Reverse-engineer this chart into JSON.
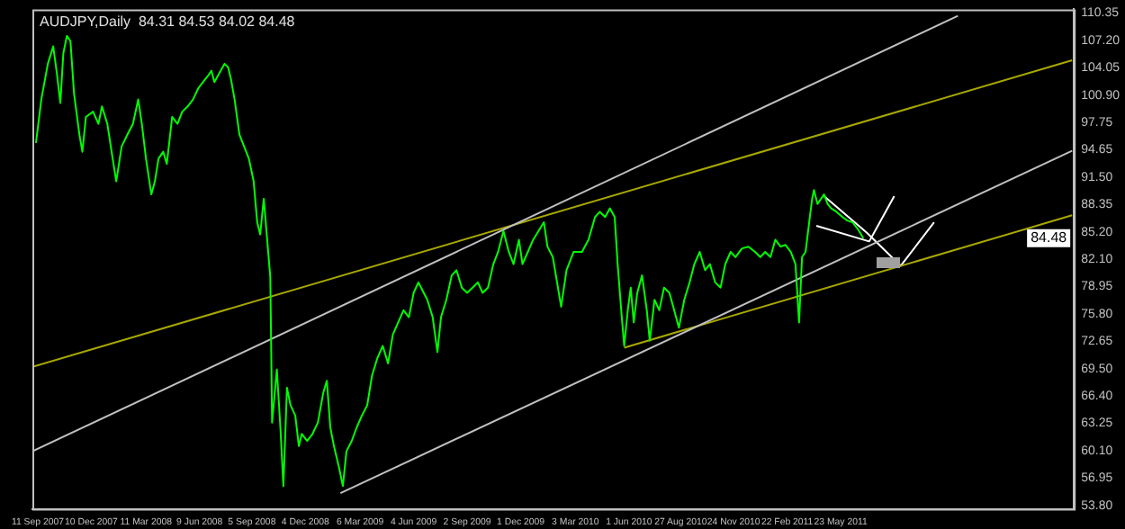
{
  "chart_data": {
    "type": "line",
    "title": "AUDJPY,Daily  84.31 84.53 84.02 84.48",
    "xlim": [
      "2007-09-02",
      "2012-06-18"
    ],
    "ylim": [
      53.4,
      110.75
    ],
    "xticks": [
      {
        "value": "2007-09-11",
        "label": "11 Sep 2007"
      },
      {
        "value": "2007-12-10",
        "label": "10 Dec 2007"
      },
      {
        "value": "2008-03-11",
        "label": "11 Mar 2008"
      },
      {
        "value": "2008-06-09",
        "label": "9 Jun 2008"
      },
      {
        "value": "2008-09-05",
        "label": "5 Sep 2008"
      },
      {
        "value": "2008-12-04",
        "label": "4 Dec 2008"
      },
      {
        "value": "2009-03-06",
        "label": "6 Mar 2009"
      },
      {
        "value": "2009-06-04",
        "label": "4 Jun 2009"
      },
      {
        "value": "2009-09-02",
        "label": "2 Sep 2009"
      },
      {
        "value": "2009-12-01",
        "label": "1 Dec 2009"
      },
      {
        "value": "2010-03-03",
        "label": "3 Mar 2010"
      },
      {
        "value": "2010-06-01",
        "label": "1 Jun 2010"
      },
      {
        "value": "2010-08-27",
        "label": "27 Aug 2010"
      },
      {
        "value": "2010-11-24",
        "label": "24 Nov 2010"
      },
      {
        "value": "2011-02-22",
        "label": "22 Feb 2011"
      },
      {
        "value": "2011-05-23",
        "label": "23 May 2011"
      }
    ],
    "yticks": [
      110.35,
      {
        "value": 107.2,
        "label": "107.20"
      },
      104.05,
      {
        "value": 100.9,
        "label": "100.90"
      },
      97.75,
      94.65,
      {
        "value": 91.5,
        "label": "91.50"
      },
      88.35,
      {
        "value": 85.2,
        "label": "85.20"
      },
      {
        "value": 82.1,
        "label": "82.10"
      },
      78.95,
      {
        "value": 75.8,
        "label": "75.80"
      },
      72.65,
      {
        "value": 69.5,
        "label": "69.50"
      },
      {
        "value": 66.4,
        "label": "66.40"
      },
      63.25,
      {
        "value": 60.1,
        "label": "60.10"
      },
      56.95,
      {
        "value": 53.8,
        "label": "53.80"
      }
    ],
    "grid": false,
    "legend": false,
    "marker": "none",
    "line_style": "solid",
    "annotations": [
      {
        "text": "84.48",
        "y": 84.48
      }
    ],
    "series": [
      {
        "color": "#00ff00",
        "x": [
          "2007-09-08",
          "2007-09-17",
          "2007-09-28",
          "2007-10-07",
          "2007-10-13",
          "2007-10-19",
          "2007-10-24",
          "2007-10-30",
          "2007-11-05",
          "2007-11-11",
          "2007-11-20",
          "2007-11-25",
          "2007-12-01",
          "2007-12-13",
          "2007-12-22",
          "2007-12-28",
          "2008-01-06",
          "2008-01-15",
          "2008-01-21",
          "2008-01-30",
          "2008-02-09",
          "2008-02-18",
          "2008-02-27",
          "2008-03-04",
          "2008-03-11",
          "2008-03-20",
          "2008-03-26",
          "2008-04-01",
          "2008-04-09",
          "2008-04-15",
          "2008-04-24",
          "2008-05-03",
          "2008-05-11",
          "2008-05-20",
          "2008-05-29",
          "2008-06-07",
          "2008-06-15",
          "2008-06-23",
          "2008-06-29",
          "2008-07-04",
          "2008-07-13",
          "2008-07-21",
          "2008-07-27",
          "2008-08-01",
          "2008-08-07",
          "2008-08-15",
          "2008-08-23",
          "2008-08-31",
          "2008-09-08",
          "2008-09-14",
          "2008-09-19",
          "2008-09-25",
          "2008-09-30",
          "2008-10-06",
          "2008-10-09",
          "2008-10-17",
          "2008-10-23",
          "2008-10-28",
          "2008-11-03",
          "2008-11-09",
          "2008-11-17",
          "2008-11-23",
          "2008-11-28",
          "2008-12-07",
          "2008-12-16",
          "2008-12-25",
          "2009-01-03",
          "2009-01-09",
          "2009-01-15",
          "2009-01-21",
          "2009-01-30",
          "2009-02-05",
          "2009-02-11",
          "2009-02-20",
          "2009-02-28",
          "2009-03-09",
          "2009-03-18",
          "2009-03-26",
          "2009-04-04",
          "2009-04-13",
          "2009-04-22",
          "2009-04-30",
          "2009-05-09",
          "2009-05-18",
          "2009-05-27",
          "2009-06-04",
          "2009-06-12",
          "2009-06-21",
          "2009-06-27",
          "2009-07-06",
          "2009-07-14",
          "2009-07-20",
          "2009-07-29",
          "2009-08-07",
          "2009-08-15",
          "2009-08-24",
          "2009-09-02",
          "2009-09-11",
          "2009-09-20",
          "2009-09-28",
          "2009-10-07",
          "2009-10-16",
          "2009-10-24",
          "2009-11-02",
          "2009-11-11",
          "2009-11-19",
          "2009-11-28",
          "2009-12-04",
          "2009-12-13",
          "2009-12-22",
          "2009-12-31",
          "2010-01-09",
          "2010-01-15",
          "2010-01-24",
          "2010-02-07",
          "2010-02-16",
          "2010-02-28",
          "2010-03-06",
          "2010-03-14",
          "2010-03-25",
          "2010-04-05",
          "2010-04-13",
          "2010-04-22",
          "2010-04-30",
          "2010-05-08",
          "2010-05-13",
          "2010-05-19",
          "2010-05-24",
          "2010-05-30",
          "2010-06-04",
          "2010-06-09",
          "2010-06-15",
          "2010-06-23",
          "2010-07-01",
          "2010-07-06",
          "2010-07-14",
          "2010-07-22",
          "2010-07-30",
          "2010-08-08",
          "2010-08-16",
          "2010-08-24",
          "2010-09-02",
          "2010-09-11",
          "2010-09-19",
          "2010-09-28",
          "2010-10-07",
          "2010-10-15",
          "2010-10-24",
          "2010-11-02",
          "2010-11-10",
          "2010-11-19",
          "2010-11-27",
          "2010-12-08",
          "2010-12-19",
          "2010-12-30",
          "2011-01-08",
          "2011-01-16",
          "2011-01-25",
          "2011-02-02",
          "2011-02-11",
          "2011-02-19",
          "2011-02-28",
          "2011-03-08",
          "2011-03-14",
          "2011-03-19",
          "2011-03-25",
          "2011-03-31",
          "2011-04-05",
          "2011-04-08",
          "2011-04-14",
          "2011-04-20",
          "2011-04-25",
          "2011-05-01",
          "2011-05-07",
          "2011-05-16",
          "2011-05-26",
          "2011-06-03",
          "2011-06-12",
          "2011-06-21",
          "2011-06-30"
        ],
        "values": [
          95.4,
          100.4,
          104.5,
          106.5,
          103.5,
          100.0,
          105.7,
          107.7,
          107.1,
          101.1,
          96.4,
          94.4,
          98.4,
          99.0,
          97.6,
          99.6,
          97.6,
          93.6,
          91.0,
          95.0,
          96.4,
          97.6,
          100.4,
          97.6,
          93.6,
          89.5,
          91.0,
          93.6,
          94.4,
          93.0,
          98.4,
          97.6,
          99.0,
          99.6,
          100.4,
          101.7,
          102.4,
          103.1,
          103.7,
          102.4,
          103.5,
          104.5,
          104.1,
          102.7,
          100.4,
          96.4,
          95.0,
          93.6,
          91.0,
          86.3,
          84.9,
          89.0,
          84.9,
          80.0,
          63.3,
          69.4,
          62.7,
          56.0,
          67.3,
          65.3,
          64.1,
          60.6,
          62.0,
          61.2,
          62.0,
          63.3,
          66.7,
          68.1,
          62.7,
          60.6,
          58.0,
          56.0,
          60.0,
          61.2,
          62.7,
          64.1,
          65.3,
          68.7,
          70.7,
          72.1,
          70.1,
          73.4,
          74.8,
          76.2,
          75.4,
          78.2,
          79.4,
          78.2,
          77.4,
          75.4,
          71.4,
          75.4,
          77.4,
          80.2,
          80.8,
          78.8,
          78.2,
          78.8,
          79.4,
          78.2,
          78.8,
          81.5,
          82.9,
          85.3,
          82.9,
          81.5,
          84.3,
          81.5,
          82.9,
          84.3,
          85.3,
          86.3,
          83.5,
          82.3,
          76.6,
          80.8,
          82.9,
          82.9,
          82.9,
          84.3,
          86.9,
          87.5,
          86.9,
          87.9,
          86.9,
          81.5,
          76.2,
          72.1,
          76.2,
          78.8,
          74.8,
          78.2,
          80.2,
          76.2,
          72.7,
          77.4,
          76.2,
          78.8,
          78.2,
          76.2,
          74.2,
          77.4,
          79.4,
          81.5,
          82.9,
          80.8,
          81.5,
          79.4,
          78.8,
          81.5,
          82.9,
          82.3,
          83.3,
          83.5,
          82.9,
          82.3,
          82.9,
          82.3,
          84.3,
          83.5,
          83.7,
          82.9,
          81.5,
          74.8,
          82.3,
          82.9,
          86.3,
          89.0,
          90.0,
          88.4,
          89.0,
          89.5,
          88.4,
          87.9,
          87.5,
          86.9,
          86.5,
          86.3,
          85.5,
          84.48
        ]
      },
      {
        "color": "#c0c0c0",
        "x": [
          "2007-09-02",
          "2011-12-06"
        ],
        "values": [
          60.0,
          110.0
        ]
      },
      {
        "color": "#c0c0c0",
        "x": [
          "2009-02-01",
          "2012-06-15"
        ],
        "values": [
          55.2,
          94.5
        ]
      },
      {
        "color": "#a8a800",
        "x": [
          "2007-09-02",
          "2012-06-15"
        ],
        "values": [
          69.7,
          104.9
        ]
      },
      {
        "color": "#a8a800",
        "x": [
          "2010-05-24",
          "2012-06-15"
        ],
        "values": [
          71.9,
          87.1
        ]
      },
      {
        "color": "#ffffff",
        "x": [
          "2011-04-25",
          "2011-07-06",
          "2011-09-01",
          "2011-10-27"
        ],
        "values": [
          89.3,
          85.1,
          81.3,
          86.3
        ]
      },
      {
        "color": "#ffffff",
        "x": [
          "2011-04-12",
          "2011-07-10",
          "2011-08-21"
        ],
        "values": [
          85.9,
          84.1,
          89.3
        ]
      }
    ]
  }
}
